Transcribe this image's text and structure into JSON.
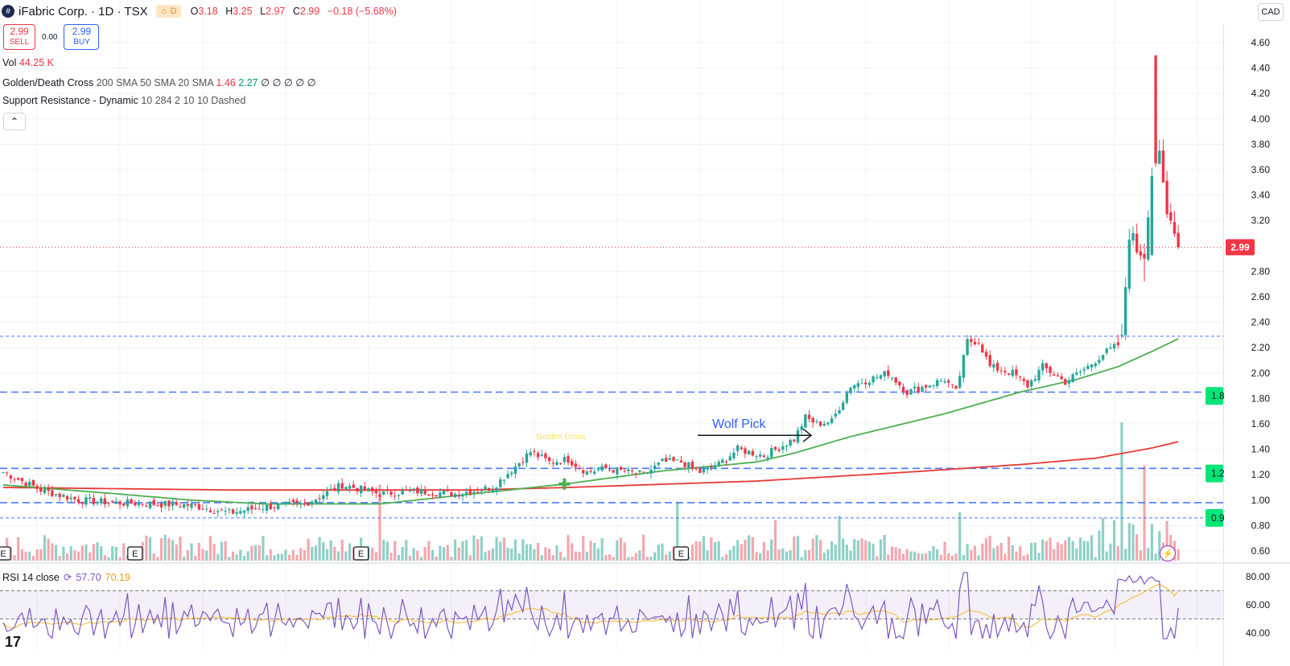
{
  "header": {
    "symbol_icon": "hash-icon",
    "title": "iFabric Corp. · 1D · TSX",
    "d_badge": "D",
    "ohlc": {
      "o_label": "O",
      "o": "3.18",
      "h_label": "H",
      "h": "3.25",
      "l_label": "L",
      "l": "2.97",
      "c_label": "C",
      "c": "2.99",
      "change": "−0.18 (−5.68%)"
    },
    "currency": "CAD"
  },
  "trade": {
    "sell_price": "2.99",
    "sell_label": "SELL",
    "spread": "0.00",
    "buy_price": "2.99",
    "buy_label": "BUY"
  },
  "indicators": {
    "vol_label": "Vol",
    "vol_value": "44.25 K",
    "gdc_label": "Golden/Death Cross",
    "gdc_params": "200 SMA 50 SMA 20 SMA",
    "gdc_v1": "1.46",
    "gdc_v2": "2.27",
    "gdc_rest": "∅ ∅ ∅ ∅ ∅",
    "sr_label": "Support Resistance - Dynamic",
    "sr_params": "10 284 2 10 10 Dashed"
  },
  "rsi": {
    "label": "RSI 14 close",
    "value": "57.70",
    "ma_value": "70.19"
  },
  "annotations": {
    "wolf_pick": "Wolf Pick",
    "golden_cross": "Golden Cross",
    "earnings": "E"
  },
  "colors": {
    "up": "#26a69a",
    "down": "#f23645",
    "sma50": "#4caf50",
    "sma200": "#e53935",
    "rsi": "#7e57c2",
    "rsi_ma": "#f6c343",
    "level": "#2962ff",
    "label_green": "#00e676",
    "wolf_text": "#2962ff"
  },
  "chart_data": {
    "type": "candlestick",
    "price_axis": {
      "min": 0.6,
      "max": 4.6,
      "ticks": [
        "4.60",
        "4.40",
        "4.20",
        "4.00",
        "3.80",
        "3.60",
        "3.40",
        "3.20",
        "2.80",
        "2.60",
        "2.40",
        "2.20",
        "2.00",
        "1.80",
        "1.60",
        "1.40",
        "1.20",
        "1.00",
        "0.80",
        "0.60"
      ]
    },
    "last_price": "2.99",
    "level_labels": [
      "1.8",
      "1.2",
      "0.9"
    ],
    "support_resistance_levels": [
      2.29,
      1.85,
      1.25,
      0.98,
      0.86
    ],
    "anchors": {
      "close": [
        [
          0,
          1.22
        ],
        [
          10,
          1.08
        ],
        [
          20,
          1.0
        ],
        [
          30,
          0.98
        ],
        [
          40,
          0.97
        ],
        [
          50,
          0.96
        ],
        [
          60,
          0.9
        ],
        [
          70,
          0.95
        ],
        [
          80,
          0.97
        ],
        [
          90,
          1.12
        ],
        [
          100,
          1.05
        ],
        [
          110,
          1.07
        ],
        [
          120,
          1.05
        ],
        [
          130,
          1.1
        ],
        [
          140,
          1.38
        ],
        [
          145,
          1.3
        ],
        [
          150,
          1.32
        ],
        [
          155,
          1.22
        ],
        [
          160,
          1.25
        ],
        [
          170,
          1.2
        ],
        [
          175,
          1.3
        ],
        [
          180,
          1.3
        ],
        [
          185,
          1.22
        ],
        [
          190,
          1.28
        ],
        [
          195,
          1.4
        ],
        [
          202,
          1.35
        ],
        [
          210,
          1.48
        ],
        [
          213,
          1.65
        ],
        [
          216,
          1.6
        ],
        [
          220,
          1.62
        ],
        [
          225,
          1.9
        ],
        [
          230,
          1.95
        ],
        [
          235,
          2.0
        ],
        [
          240,
          1.85
        ],
        [
          245,
          1.9
        ],
        [
          250,
          1.95
        ],
        [
          253,
          1.85
        ],
        [
          256,
          2.25
        ],
        [
          259,
          2.25
        ],
        [
          262,
          2.05
        ],
        [
          268,
          2.0
        ],
        [
          272,
          1.9
        ],
        [
          276,
          2.05
        ],
        [
          282,
          1.93
        ],
        [
          288,
          2.05
        ],
        [
          292,
          2.15
        ],
        [
          296,
          2.22
        ],
        [
          297,
          2.3
        ],
        [
          299,
          3.05
        ],
        [
          300,
          3.1
        ],
        [
          301,
          2.95
        ],
        [
          303,
          2.9
        ],
        [
          305,
          3.55
        ],
        [
          306,
          3.65
        ],
        [
          307,
          3.75
        ],
        [
          308,
          3.5
        ],
        [
          309,
          3.25
        ],
        [
          310,
          3.2
        ],
        [
          312,
          2.99
        ]
      ],
      "sma50": [
        [
          0,
          1.12
        ],
        [
          30,
          1.05
        ],
        [
          50,
          1.0
        ],
        [
          70,
          0.97
        ],
        [
          100,
          0.97
        ],
        [
          125,
          1.05
        ],
        [
          150,
          1.13
        ],
        [
          175,
          1.23
        ],
        [
          200,
          1.3
        ],
        [
          210,
          1.37
        ],
        [
          225,
          1.5
        ],
        [
          250,
          1.68
        ],
        [
          270,
          1.85
        ],
        [
          285,
          1.95
        ],
        [
          296,
          2.05
        ],
        [
          305,
          2.17
        ],
        [
          312,
          2.27
        ]
      ],
      "sma200": [
        [
          0,
          1.1
        ],
        [
          60,
          1.08
        ],
        [
          100,
          1.08
        ],
        [
          125,
          1.08
        ],
        [
          150,
          1.1
        ],
        [
          200,
          1.15
        ],
        [
          240,
          1.22
        ],
        [
          270,
          1.28
        ],
        [
          290,
          1.33
        ],
        [
          305,
          1.41
        ],
        [
          312,
          1.46
        ]
      ]
    },
    "volume": {
      "max_k": 1600,
      "spikes": [
        [
          100,
          880
        ],
        [
          179,
          680
        ],
        [
          205,
          470
        ],
        [
          222,
          520
        ],
        [
          254,
          560
        ],
        [
          297,
          1600
        ],
        [
          303,
          1100
        ]
      ]
    },
    "rsi": {
      "axis": [
        "80.00",
        "60.00",
        "40.00"
      ],
      "min": 30,
      "max": 85,
      "upper_band": 70,
      "lower_band": 50,
      "last": 57.7,
      "ma_last": 70.19
    },
    "events": {
      "golden_cross_x": 149,
      "wolf_pick_x": 210,
      "earnings_x": [
        0,
        35,
        95,
        180
      ]
    }
  }
}
